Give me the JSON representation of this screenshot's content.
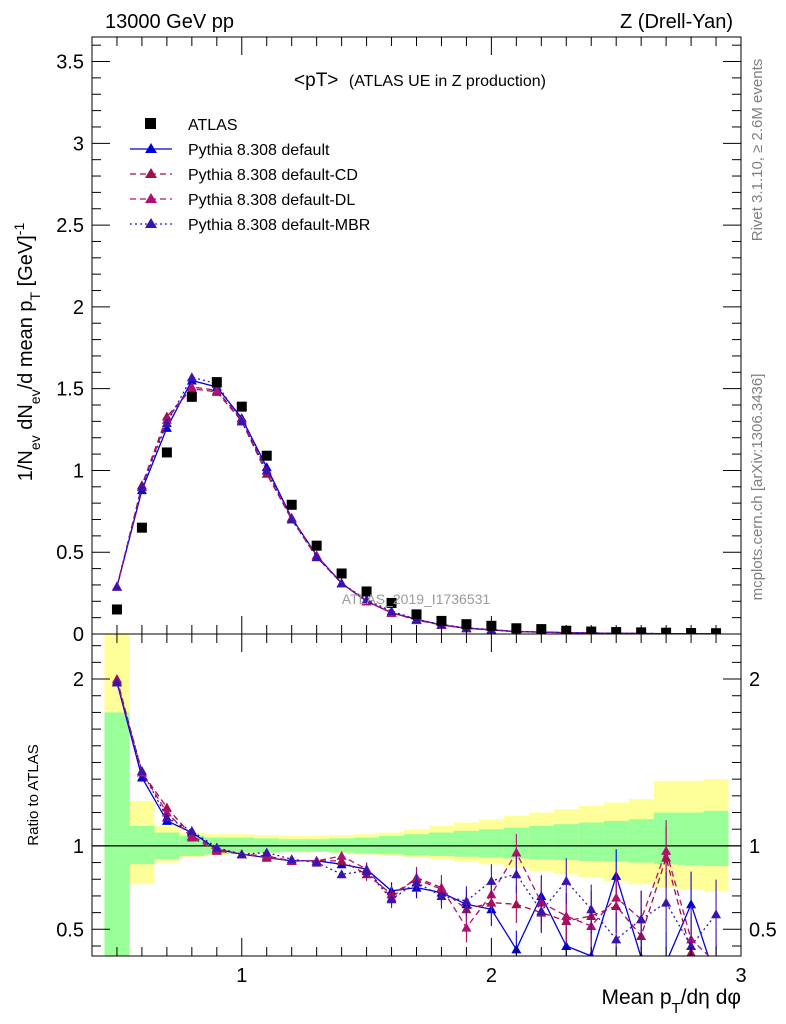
{
  "header": {
    "left": "13000 GeV pp",
    "right": "Z (Drell-Yan)"
  },
  "plot_title_main": "<pT>",
  "plot_title_sub": "(ATLAS UE in Z production)",
  "watermark": "ATLAS_2019_I1736531",
  "side_text": {
    "rivet": "Rivet 3.1.10, ≥ 2.6M events",
    "mcplots": "mcplots.cern.ch [arXiv:1306.3436]"
  },
  "ylabel_top": "1/N_ev dN_ev/d mean p_T [GeV]^-1",
  "ylabel_ratio": "Ratio to ATLAS",
  "xlabel": "Mean p_T/dη dφ",
  "colors": {
    "atlas": "#000000",
    "default": "#0000dd",
    "cd": "#a0104f",
    "dl": "#b0106f",
    "mbr": "#3b14b0",
    "band_inner": "#99ff99",
    "band_outer": "#ffff99"
  },
  "chart_data": [
    {
      "type": "scatter",
      "title": "<pT> (ATLAS UE in Z production)",
      "xlabel": "Mean p_T/dη dφ",
      "ylabel": "1/N_ev dN_ev/d mean p_T [GeV]^-1",
      "xlim": [
        0.4,
        3.0
      ],
      "ylim": [
        0,
        3.65
      ],
      "xticks": [
        1,
        2,
        3
      ],
      "yticks": [
        0,
        0.5,
        1,
        1.5,
        2,
        2.5,
        3,
        3.5
      ],
      "ytick_labels": [
        "0",
        "0.5",
        "1",
        "1.5",
        "2",
        "2.5",
        "3",
        "3.5"
      ],
      "legend_position": "top-left",
      "x": [
        0.5,
        0.6,
        0.7,
        0.8,
        0.9,
        1.0,
        1.1,
        1.2,
        1.3,
        1.4,
        1.5,
        1.6,
        1.7,
        1.8,
        1.9,
        2.0,
        2.1,
        2.2,
        2.3,
        2.4,
        2.5,
        2.6,
        2.7,
        2.8,
        2.9
      ],
      "series": [
        {
          "name": "ATLAS",
          "marker": "square",
          "values": [
            0.15,
            0.65,
            1.11,
            1.45,
            1.54,
            1.39,
            1.09,
            0.79,
            0.54,
            0.37,
            0.26,
            0.19,
            0.12,
            0.08,
            0.06,
            0.05,
            0.035,
            0.03,
            0.02,
            0.015,
            0.012,
            0.01,
            0.008,
            0.006,
            0.005
          ]
        },
        {
          "name": "Pythia 8.308 default",
          "style": "solid",
          "marker": "triangle",
          "values": [
            0.29,
            0.88,
            1.26,
            1.55,
            1.51,
            1.32,
            1.02,
            0.71,
            0.48,
            0.31,
            0.2,
            0.13,
            0.09,
            0.055,
            0.035,
            0.025,
            0.014,
            0.012,
            0.008,
            0.006,
            0.004,
            0.003,
            0.002,
            0.0015,
            0.001
          ]
        },
        {
          "name": "Pythia 8.308 default-CD",
          "style": "dashed",
          "marker": "triangle",
          "values": [
            0.29,
            0.91,
            1.33,
            1.5,
            1.48,
            1.3,
            0.98,
            0.7,
            0.47,
            0.31,
            0.2,
            0.13,
            0.085,
            0.055,
            0.035,
            0.025,
            0.015,
            0.011,
            0.008,
            0.006,
            0.004,
            0.003,
            0.002,
            0.0015,
            0.001
          ]
        },
        {
          "name": "Pythia 8.308 default-DL",
          "style": "dashed",
          "marker": "triangle",
          "values": [
            0.29,
            0.9,
            1.31,
            1.51,
            1.49,
            1.31,
            1.0,
            0.71,
            0.48,
            0.31,
            0.2,
            0.13,
            0.087,
            0.056,
            0.036,
            0.026,
            0.015,
            0.011,
            0.008,
            0.006,
            0.004,
            0.003,
            0.002,
            0.0015,
            0.001
          ]
        },
        {
          "name": "Pythia 8.308 default-MBR",
          "style": "dotted",
          "marker": "triangle",
          "values": [
            0.29,
            0.9,
            1.29,
            1.57,
            1.53,
            1.3,
            1.0,
            0.7,
            0.47,
            0.31,
            0.21,
            0.14,
            0.09,
            0.058,
            0.038,
            0.026,
            0.016,
            0.012,
            0.008,
            0.006,
            0.004,
            0.003,
            0.002,
            0.0015,
            0.001
          ]
        }
      ]
    },
    {
      "type": "line",
      "ylabel": "Ratio to ATLAS",
      "xlabel": "Mean p_T/dη dφ",
      "xlim": [
        0.4,
        3.0
      ],
      "ylim": [
        0.34,
        2.27
      ],
      "yticks": [
        0.5,
        1,
        2
      ],
      "ytick_labels": [
        "0.5",
        "1",
        "2"
      ],
      "reference_line": 1,
      "bands": {
        "x_edges": [
          0.45,
          0.55,
          0.65,
          0.75,
          0.85,
          0.95,
          1.05,
          1.15,
          1.25,
          1.35,
          1.45,
          1.55,
          1.65,
          1.75,
          1.85,
          1.95,
          2.05,
          2.15,
          2.25,
          2.35,
          2.45,
          2.55,
          2.65,
          2.75,
          2.85,
          2.95
        ],
        "inner_lower": [
          0.0,
          0.89,
          0.92,
          0.94,
          0.95,
          0.96,
          0.96,
          0.965,
          0.965,
          0.96,
          0.955,
          0.95,
          0.945,
          0.94,
          0.935,
          0.93,
          0.925,
          0.92,
          0.915,
          0.91,
          0.905,
          0.9,
          0.89,
          0.885,
          0.88
        ],
        "inner_upper": [
          1.8,
          1.12,
          1.08,
          1.06,
          1.05,
          1.05,
          1.045,
          1.04,
          1.04,
          1.045,
          1.05,
          1.06,
          1.07,
          1.08,
          1.09,
          1.1,
          1.11,
          1.12,
          1.13,
          1.14,
          1.15,
          1.16,
          1.2,
          1.2,
          1.21
        ],
        "outer_lower": [
          0.0,
          0.77,
          0.9,
          0.93,
          0.945,
          0.955,
          0.958,
          0.962,
          0.962,
          0.955,
          0.948,
          0.94,
          0.93,
          0.92,
          0.905,
          0.89,
          0.87,
          0.85,
          0.83,
          0.81,
          0.79,
          0.77,
          0.75,
          0.74,
          0.73
        ],
        "outer_upper": [
          2.27,
          1.27,
          1.12,
          1.08,
          1.07,
          1.07,
          1.065,
          1.06,
          1.06,
          1.065,
          1.07,
          1.08,
          1.1,
          1.12,
          1.14,
          1.16,
          1.18,
          1.2,
          1.22,
          1.24,
          1.26,
          1.28,
          1.39,
          1.39,
          1.4
        ]
      },
      "x": [
        0.5,
        0.6,
        0.7,
        0.8,
        0.9,
        1.0,
        1.1,
        1.2,
        1.3,
        1.4,
        1.5,
        1.6,
        1.7,
        1.8,
        1.9,
        2.0,
        2.1,
        2.2,
        2.3,
        2.4,
        2.5,
        2.6,
        2.7,
        2.8,
        2.9
      ],
      "series": [
        {
          "name": "Pythia 8.308 default",
          "style": "solid",
          "values": [
            1.98,
            1.41,
            1.15,
            1.08,
            0.98,
            0.95,
            0.93,
            0.91,
            0.91,
            0.89,
            0.86,
            0.73,
            0.75,
            0.72,
            0.65,
            0.62,
            0.38,
            0.7,
            0.4,
            0.34,
            0.82,
            0.33,
            0.3,
            0.65,
            0.2
          ]
        },
        {
          "name": "Pythia 8.308 default-CD",
          "style": "dashed",
          "values": [
            2.0,
            1.44,
            1.23,
            1.06,
            0.98,
            0.95,
            0.93,
            0.91,
            0.91,
            0.91,
            0.83,
            0.71,
            0.8,
            0.74,
            0.62,
            0.66,
            0.65,
            0.6,
            0.55,
            0.58,
            0.64,
            0.46,
            0.93,
            0.36,
            0.2
          ]
        },
        {
          "name": "Pythia 8.308 default-DL",
          "style": "dashed",
          "values": [
            1.99,
            1.44,
            1.2,
            1.05,
            0.97,
            0.95,
            0.94,
            0.91,
            0.91,
            0.94,
            0.86,
            0.69,
            0.81,
            0.75,
            0.51,
            0.71,
            0.96,
            0.66,
            0.58,
            0.52,
            0.69,
            0.56,
            0.97,
            0.44,
            0.3
          ]
        },
        {
          "name": "Pythia 8.308 default-MBR",
          "style": "dotted",
          "values": [
            1.98,
            1.45,
            1.17,
            1.09,
            0.99,
            0.95,
            0.96,
            0.92,
            0.9,
            0.83,
            0.85,
            0.68,
            0.78,
            0.7,
            0.67,
            0.79,
            0.83,
            0.61,
            0.79,
            0.62,
            0.44,
            0.56,
            0.66,
            0.4,
            0.59
          ]
        }
      ]
    }
  ]
}
